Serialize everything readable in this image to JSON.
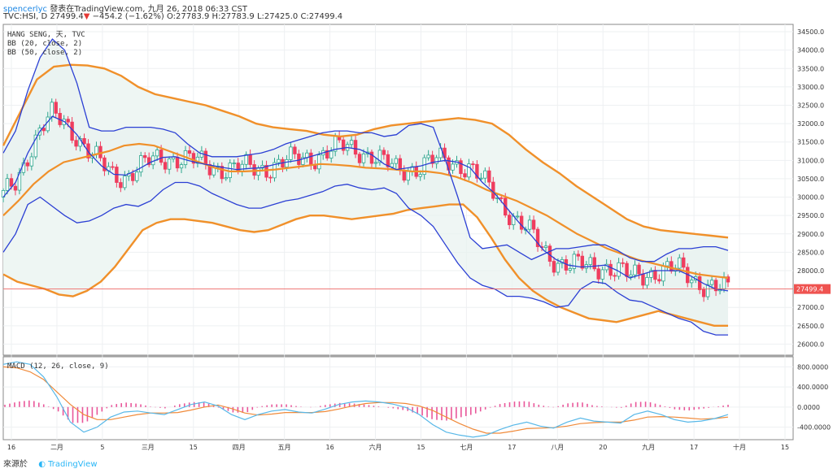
{
  "header": {
    "author": "spencerlyc",
    "published": "發表在TradingView.com, 九月 26, 2018 06:33 CST",
    "symbol": "TVC:HSI, D",
    "last": "27499.4",
    "change": "−454.2 (−1.62%)",
    "ohlc": "O:27783.9 H:27783.9 L:27425.0 C:27499.4"
  },
  "legend": {
    "title": "HANG SENG, 天, TVC",
    "bb20": "BB (20, close, 2)",
    "bb50": "BB (50, close, 2)",
    "macd": "MACD (12, 26, close, 9)"
  },
  "footer": {
    "source": "來源於",
    "brand": "TradingView"
  },
  "colors": {
    "up": "#2ca58d",
    "down": "#ef3d5e",
    "bb20": "#2b3fd4",
    "bb50": "#f0902a",
    "fill": "#e8f2f0",
    "signal": "#f08a3a",
    "macd": "#58b8e8",
    "hist": "#e9579a",
    "price_line": "#ef5350"
  },
  "chart_data": [
    {
      "type": "line",
      "panel": "price",
      "ylim": [
        25700,
        34700
      ],
      "y_ticks": [
        "34500.0",
        "34000.0",
        "33500.0",
        "33000.0",
        "32500.0",
        "32000.0",
        "31500.0",
        "31000.0",
        "30500.0",
        "30000.0",
        "29500.0",
        "29000.0",
        "28500.0",
        "28000.0",
        "27500.0",
        "27000.0",
        "26500.0",
        "26000.0"
      ],
      "last_price_label": "27499.4",
      "x_ticks": [
        "16",
        "二月",
        "5",
        "三月",
        "15",
        "四月",
        "五月",
        "16",
        "六月",
        "15",
        "七月",
        "17",
        "八月",
        "20",
        "九月",
        "17",
        "十月",
        "15"
      ],
      "series": [
        {
          "name": "BB20 middle",
          "values": [
            30000,
            30400,
            31200,
            31800,
            32200,
            32050,
            31700,
            31200,
            30850,
            30620,
            30600,
            30760,
            30950,
            31080,
            31100,
            31000,
            30920,
            30860,
            30800,
            30750,
            30780,
            30800,
            30880,
            30950,
            31000,
            31100,
            31200,
            31300,
            31350,
            31300,
            31150,
            30900,
            30750,
            30800,
            30850,
            30950,
            31000,
            30950,
            30800,
            30400,
            30100,
            29700,
            29300,
            28950,
            28550,
            28300,
            28150,
            28100,
            28120,
            28150,
            28000,
            27800,
            27900,
            28000,
            28000,
            28000,
            27850,
            27650,
            27500,
            27450
          ]
        },
        {
          "name": "BB20 upper",
          "values": [
            31200,
            31800,
            32900,
            33800,
            34300,
            34000,
            33100,
            31900,
            31800,
            31800,
            31900,
            31900,
            31900,
            31850,
            31750,
            31450,
            31200,
            31100,
            31100,
            31100,
            31150,
            31200,
            31300,
            31450,
            31550,
            31650,
            31750,
            31800,
            31800,
            31750,
            31750,
            31650,
            31700,
            31950,
            32000,
            31900,
            31000,
            30000,
            28900,
            28600,
            28650,
            28700,
            28500,
            28300,
            28450,
            28600,
            28600,
            28650,
            28700,
            28700,
            28550,
            28350,
            28250,
            28250,
            28450,
            28600,
            28600,
            28650,
            28650,
            28550
          ]
        },
        {
          "name": "BB20 lower",
          "values": [
            28500,
            29000,
            29800,
            30000,
            29750,
            29500,
            29300,
            29350,
            29500,
            29700,
            29800,
            29750,
            29900,
            30200,
            30400,
            30400,
            30300,
            30100,
            29950,
            29800,
            29700,
            29700,
            29800,
            29900,
            29950,
            30050,
            30150,
            30300,
            30350,
            30250,
            30200,
            30250,
            30100,
            29700,
            29500,
            29200,
            28700,
            28200,
            27800,
            27600,
            27500,
            27300,
            27300,
            27250,
            27150,
            27000,
            27050,
            27500,
            27700,
            27650,
            27400,
            27200,
            27150,
            27000,
            26850,
            26700,
            26600,
            26350,
            26250,
            26250
          ]
        },
        {
          "name": "BB50 middle",
          "values": [
            29500,
            29900,
            30350,
            30700,
            30950,
            31050,
            31150,
            31250,
            31400,
            31450,
            31400,
            31250,
            31100,
            30950,
            30800,
            30700,
            30700,
            30720,
            30750,
            30800,
            30850,
            30900,
            30880,
            30850,
            30800,
            30780,
            30750,
            30700,
            30700,
            30650,
            30550,
            30400,
            30200,
            30050,
            29900,
            29700,
            29500,
            29250,
            29000,
            28800,
            28600,
            28450,
            28300,
            28200,
            28100,
            28000,
            27900,
            27850,
            27800
          ]
        },
        {
          "name": "BB50 upper",
          "values": [
            31400,
            32300,
            33200,
            33550,
            33600,
            33580,
            33500,
            33300,
            33000,
            32800,
            32700,
            32600,
            32500,
            32350,
            32200,
            32000,
            31900,
            31850,
            31800,
            31700,
            31650,
            31700,
            31850,
            31950,
            32000,
            32050,
            32100,
            32150,
            32100,
            32000,
            31700,
            31300,
            30950,
            30650,
            30300,
            30000,
            29700,
            29400,
            29200,
            29100,
            29050,
            29000,
            28950,
            28900
          ]
        },
        {
          "name": "BB50 lower",
          "values": [
            27900,
            27700,
            27600,
            27500,
            27350,
            27300,
            27450,
            27700,
            28100,
            28600,
            29100,
            29300,
            29400,
            29400,
            29350,
            29300,
            29200,
            29100,
            29050,
            29100,
            29250,
            29400,
            29500,
            29500,
            29450,
            29400,
            29450,
            29500,
            29550,
            29650,
            29700,
            29750,
            29800,
            29800,
            29450,
            28900,
            28300,
            27800,
            27450,
            27200,
            27000,
            26850,
            26700,
            26650,
            26600,
            26700,
            26800,
            26900,
            26800,
            26700,
            26600,
            26500,
            26500
          ]
        }
      ]
    },
    {
      "type": "line",
      "panel": "macd",
      "ylim": [
        -650,
        1000
      ],
      "y_ticks": [
        "800.0000",
        "400.0000",
        "0.0000",
        "-400.0000"
      ],
      "series": [
        {
          "name": "MACD",
          "values": [
            850,
            900,
            850,
            600,
            200,
            -300,
            -500,
            -400,
            -200,
            -100,
            -80,
            -120,
            -150,
            -50,
            50,
            100,
            20,
            -150,
            -250,
            -150,
            -80,
            -50,
            -100,
            -120,
            -40,
            50,
            100,
            120,
            100,
            60,
            -10,
            -150,
            -350,
            -500,
            -560,
            -600,
            -560,
            -450,
            -360,
            -300,
            -380,
            -420,
            -300,
            -220,
            -280,
            -300,
            -320,
            -150,
            -80,
            -150,
            -250,
            -300,
            -280,
            -230,
            -150
          ]
        },
        {
          "name": "Signal",
          "values": [
            800,
            780,
            700,
            550,
            300,
            50,
            -150,
            -250,
            -250,
            -200,
            -150,
            -120,
            -120,
            -110,
            -60,
            0,
            40,
            -30,
            -120,
            -160,
            -140,
            -110,
            -110,
            -110,
            -90,
            -40,
            20,
            70,
            90,
            90,
            70,
            20,
            -70,
            -200,
            -330,
            -440,
            -520,
            -520,
            -480,
            -430,
            -420,
            -410,
            -380,
            -330,
            -310,
            -300,
            -300,
            -260,
            -200,
            -190,
            -200,
            -220,
            -240,
            -230,
            -200
          ]
        }
      ]
    }
  ]
}
